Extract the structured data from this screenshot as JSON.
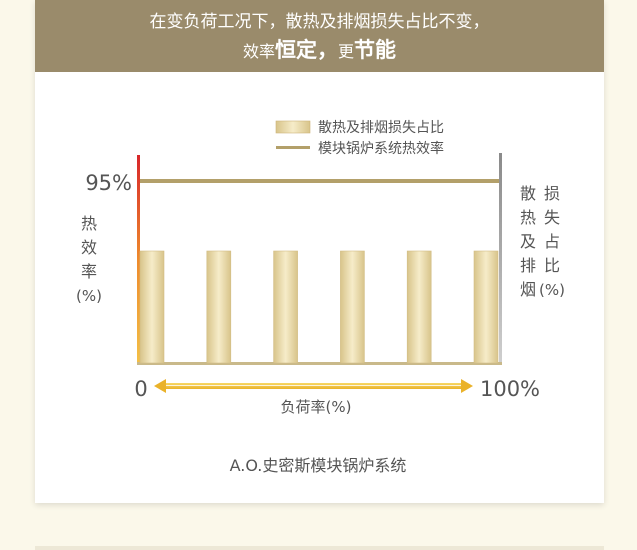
{
  "header": {
    "line1": "在变负荷工况下，散热及排烟损失占比不变，",
    "line2_a": "效率",
    "line2_b": "恒定，",
    "line2_c": "更",
    "line2_d": "节能"
  },
  "caption": "A.O.史密斯模块锅炉系统",
  "colors": {
    "banner": "#9a8b6b",
    "bar": "#e8d7a3",
    "efficiency_line": "#b3a06a",
    "arrow": "#f0c33a"
  },
  "chart_data": {
    "type": "bar",
    "categories": [
      "",
      "",
      "",
      "",
      "",
      ""
    ],
    "values": [
      1,
      1,
      1,
      1,
      1,
      1
    ],
    "line_value": 95,
    "series": [
      {
        "name": "散热及排烟损失占比",
        "kind": "bar"
      },
      {
        "name": "模块锅炉系统热效率",
        "kind": "line"
      }
    ],
    "y_tick_label": "95%",
    "ylabel_left": [
      "热",
      "效",
      "率",
      "(%)"
    ],
    "ylabel_right_col1": [
      "散",
      "热",
      "及",
      "排",
      "烟"
    ],
    "ylabel_right_col2": [
      "损",
      "失",
      "占",
      "比",
      "(%)"
    ],
    "x_start": "0",
    "x_end": "100%",
    "xlabel": "负荷率(%)",
    "legend_position": "top-right"
  }
}
